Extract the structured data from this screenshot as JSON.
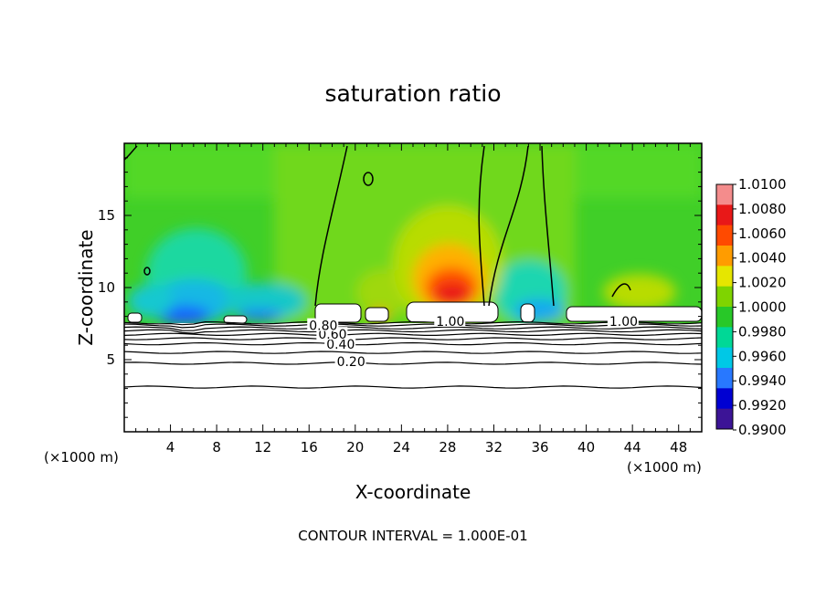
{
  "chart_data": {
    "type": "heatmap",
    "title": "saturation ratio",
    "xlabel": "X-coordinate",
    "ylabel": "Z-coordinate",
    "x_unit_label": "(×1000 m)",
    "xlim": [
      0,
      50
    ],
    "ylim": [
      0,
      20
    ],
    "x_ticks": [
      4,
      8,
      12,
      16,
      20,
      24,
      28,
      32,
      36,
      40,
      44,
      48
    ],
    "y_ticks": [
      5,
      10,
      15
    ],
    "colorbar": {
      "levels": [
        "1.0100",
        "1.0080",
        "1.0060",
        "1.0040",
        "1.0020",
        "1.0000",
        "0.9980",
        "0.9960",
        "0.9940",
        "0.9920",
        "0.9900"
      ],
      "colors": [
        "#f48c8c",
        "#e81818",
        "#ff4a00",
        "#ff9c00",
        "#e6e600",
        "#7fd400",
        "#28c828",
        "#00d896",
        "#00c8e6",
        "#2878ff",
        "#0000d2",
        "#3c1496"
      ]
    },
    "contour_labels": [
      {
        "text": "0.20",
        "x": 18.4,
        "z": 4.8
      },
      {
        "text": "0.40",
        "x": 17.5,
        "z": 6.0
      },
      {
        "text": "0.60",
        "x": 16.8,
        "z": 6.7
      },
      {
        "text": "0.80",
        "x": 16.0,
        "z": 7.3
      },
      {
        "text": "1.00",
        "x": 27.0,
        "z": 7.6
      },
      {
        "text": "1.00",
        "x": 42.0,
        "z": 7.6
      }
    ],
    "contour_interval_text": "CONTOUR INTERVAL = 1.000E-01",
    "legend": "right"
  }
}
